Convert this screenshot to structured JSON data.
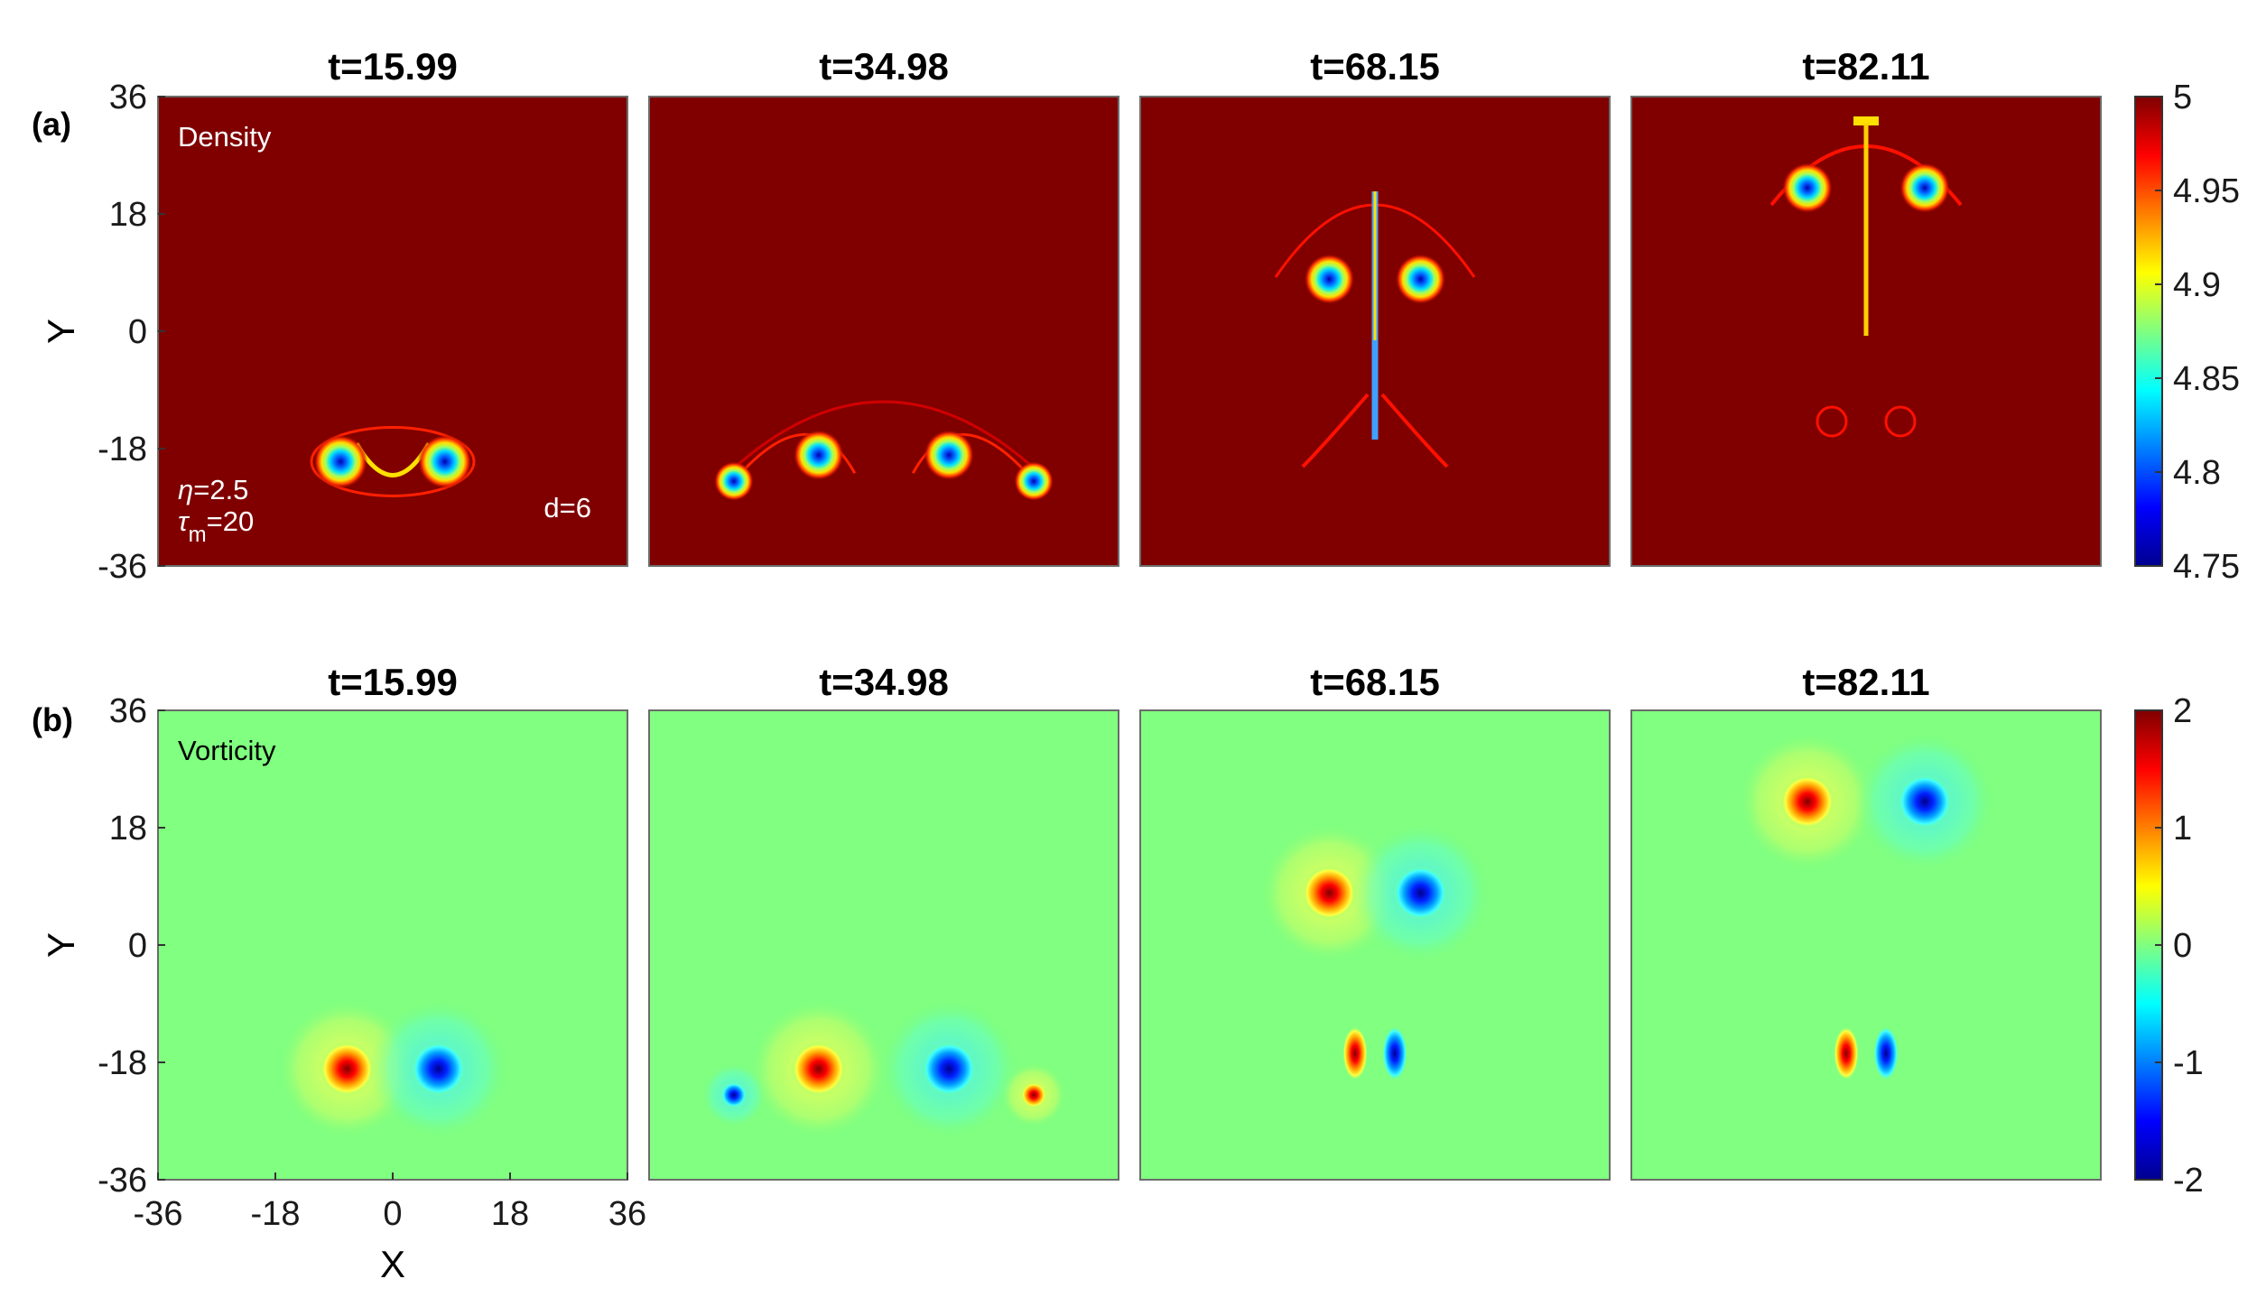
{
  "panel_a_label": "(a)",
  "panel_b_label": "(b)",
  "annotations": {
    "density": "Density",
    "vorticity": "Vorticity",
    "eta_symbol": "η",
    "eta_value": "=2.5",
    "tau_symbol": "τ",
    "tau_sub": "m",
    "tau_value": "=20",
    "d": "d=6"
  },
  "axes": {
    "xlabel": "X",
    "ylabel": "Y"
  },
  "colormap": "jet",
  "chart_data": [
    {
      "type": "heatmap",
      "row": "a",
      "quantity": "Density",
      "panel_titles": [
        "t=15.99",
        "t=34.98",
        "t=68.15",
        "t=82.11"
      ],
      "times": [
        15.99,
        34.98,
        68.15,
        82.11
      ],
      "xlim": [
        -36,
        36
      ],
      "ylim": [
        -36,
        36
      ],
      "xticks": [
        "-36",
        "-18",
        "0",
        "18",
        "36"
      ],
      "yticks": [
        "36",
        "18",
        "0",
        "-18",
        "-36"
      ],
      "colorbar": {
        "range": [
          4.75,
          5
        ],
        "ticks": [
          "5",
          "4.95",
          "4.9",
          "4.85",
          "4.8",
          "4.75"
        ]
      },
      "background_value": 5,
      "vortex_centers": [
        {
          "t": 15.99,
          "x": [
            -8,
            8
          ],
          "y": [
            -20,
            -20
          ]
        },
        {
          "t": 34.98,
          "x": [
            -23,
            -10,
            10,
            23
          ],
          "y": [
            -23,
            -19,
            -19,
            -23
          ]
        },
        {
          "t": 68.15,
          "x": [
            -7,
            7
          ],
          "y": [
            8,
            8
          ]
        },
        {
          "t": 82.11,
          "x": [
            -9,
            9
          ],
          "y": [
            22,
            22
          ]
        }
      ]
    },
    {
      "type": "heatmap",
      "row": "b",
      "quantity": "Vorticity",
      "panel_titles": [
        "t=15.99",
        "t=34.98",
        "t=68.15",
        "t=82.11"
      ],
      "times": [
        15.99,
        34.98,
        68.15,
        82.11
      ],
      "xlim": [
        -36,
        36
      ],
      "ylim": [
        -36,
        36
      ],
      "xticks": [
        "-36",
        "-18",
        "0",
        "18",
        "36"
      ],
      "yticks": [
        "36",
        "18",
        "0",
        "-18",
        "-36"
      ],
      "colorbar": {
        "range": [
          -2,
          2
        ],
        "ticks": [
          "2",
          "1",
          "0",
          "-1",
          "-2"
        ]
      },
      "background_value": 0,
      "vortex_centers": [
        {
          "t": 15.99,
          "x": [
            -7,
            7
          ],
          "y": [
            -19,
            -19
          ]
        },
        {
          "t": 34.98,
          "x": [
            -10,
            10,
            -23,
            23
          ],
          "y": [
            -19,
            -19,
            -23,
            -23
          ]
        },
        {
          "t": 68.15,
          "x": [
            -7,
            7
          ],
          "y": [
            8,
            8
          ]
        },
        {
          "t": 82.11,
          "x": [
            -9,
            9
          ],
          "y": [
            22,
            22
          ]
        }
      ]
    }
  ]
}
